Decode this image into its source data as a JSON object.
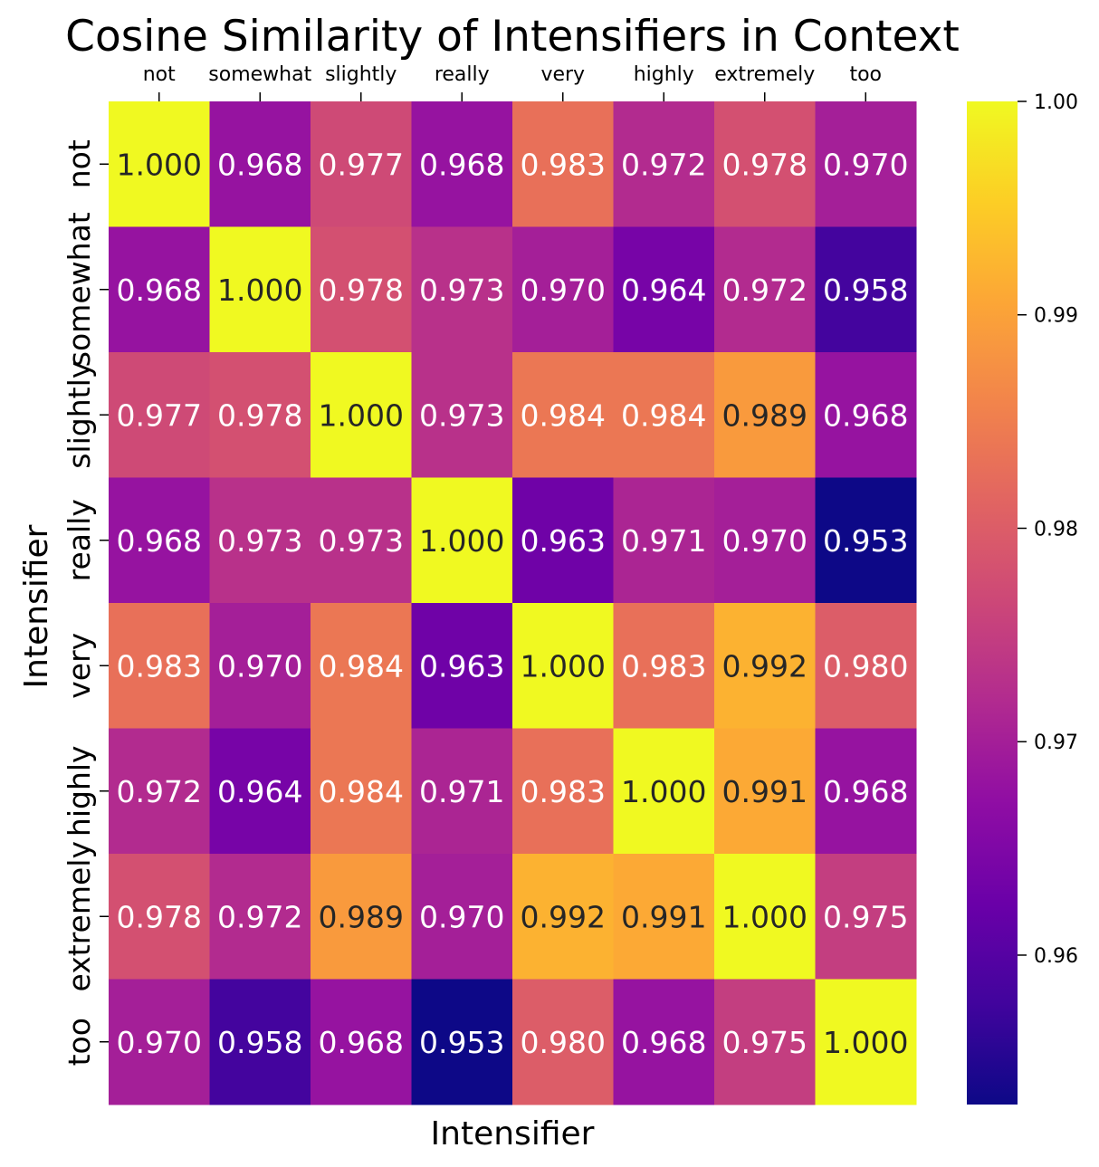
{
  "chart_data": {
    "type": "heatmap",
    "title": "Cosine Similarity of Intensifiers in Context",
    "xlabel": "Intensifier",
    "ylabel": "Intensifier",
    "x_categories": [
      "not",
      "somewhat",
      "slightly",
      "really",
      "very",
      "highly",
      "extremely",
      "too"
    ],
    "y_categories": [
      "not",
      "somewhat",
      "slightly",
      "really",
      "very",
      "highly",
      "extremely",
      "too"
    ],
    "x_axis_position": "top",
    "values": [
      [
        1.0,
        0.968,
        0.977,
        0.968,
        0.983,
        0.972,
        0.978,
        0.97
      ],
      [
        0.968,
        1.0,
        0.978,
        0.973,
        0.97,
        0.964,
        0.972,
        0.958
      ],
      [
        0.977,
        0.978,
        1.0,
        0.973,
        0.984,
        0.984,
        0.989,
        0.968
      ],
      [
        0.968,
        0.973,
        0.973,
        1.0,
        0.963,
        0.971,
        0.97,
        0.953
      ],
      [
        0.983,
        0.97,
        0.984,
        0.963,
        1.0,
        0.983,
        0.992,
        0.98
      ],
      [
        0.972,
        0.964,
        0.984,
        0.971,
        0.983,
        1.0,
        0.991,
        0.968
      ],
      [
        0.978,
        0.972,
        0.989,
        0.97,
        0.992,
        0.991,
        1.0,
        0.975
      ],
      [
        0.97,
        0.958,
        0.968,
        0.953,
        0.98,
        0.968,
        0.975,
        1.0
      ]
    ],
    "value_format": "0.000",
    "colormap": "plasma",
    "vmin": 0.953,
    "vmax": 1.0,
    "colorbar": {
      "ticks": [
        1.0,
        0.99,
        0.98,
        0.97,
        0.96
      ],
      "tick_labels": [
        "1.00",
        "0.99",
        "0.98",
        "0.97",
        "0.96"
      ]
    },
    "grid": false,
    "legend": "none"
  }
}
